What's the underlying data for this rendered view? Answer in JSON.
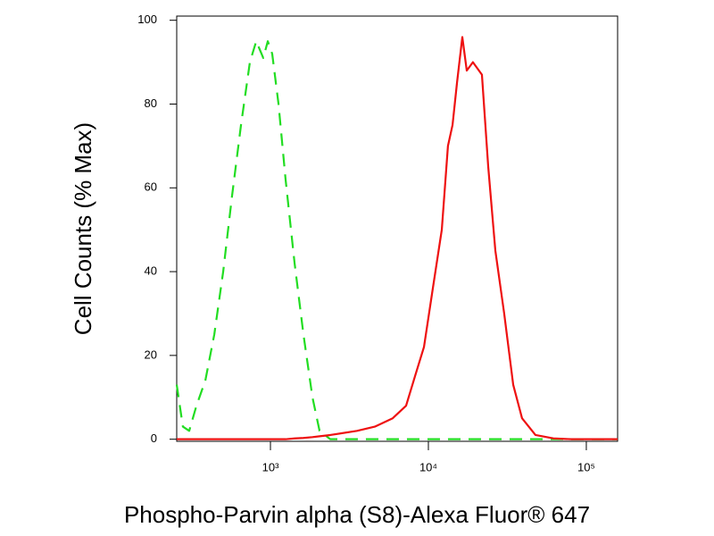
{
  "chart_data": {
    "type": "line",
    "xlabel": "Phospho-Parvin alpha (S8)-Alexa Fluor® 647",
    "ylabel": "Cell Counts (% Max)",
    "xscale": "log",
    "xlim": [
      255,
      157800
    ],
    "ylim": [
      -0.5,
      101
    ],
    "xticks": [
      {
        "value": 1000,
        "label": "10³"
      },
      {
        "value": 10000,
        "label": "10⁴"
      },
      {
        "value": 100000,
        "label": "10⁵"
      }
    ],
    "yticks": [
      0,
      20,
      40,
      60,
      80,
      100
    ],
    "x": [
      255,
      279,
      306,
      340,
      387,
      441,
      502,
      571,
      651,
      741,
      813,
      901,
      962,
      1026,
      1125,
      1247,
      1422,
      1618,
      1845,
      2046,
      2391,
      3532,
      4581,
      5943,
      7223,
      8222,
      9376,
      10670,
      12160,
      13300,
      14220,
      15170,
      16400,
      17500,
      19140,
      21830,
      23930,
      26550,
      30200,
      34440,
      39180,
      47640,
      61800,
      80170,
      157800
    ],
    "series": [
      {
        "color": "#22dd22",
        "line_style": "dashed",
        "values": [
          13,
          3,
          2,
          8,
          14,
          25,
          40,
          58,
          75,
          90,
          95,
          91,
          95,
          92,
          80,
          62,
          42,
          25,
          10,
          2,
          0,
          0,
          0,
          0,
          0,
          0,
          0,
          0,
          0,
          0,
          0,
          0,
          0,
          0,
          0,
          0,
          0,
          0,
          0,
          0,
          0,
          0,
          0,
          0,
          0
        ]
      },
      {
        "color": "#ee1111",
        "line_style": "solid",
        "values": [
          0,
          0,
          0,
          0,
          0,
          0,
          0,
          0,
          0,
          0,
          0,
          0,
          0,
          0,
          0,
          0,
          0.2,
          0.3,
          0.5,
          0.7,
          1,
          2,
          3,
          5,
          8,
          15,
          22,
          36,
          50,
          70,
          75,
          85,
          96,
          88,
          90,
          87,
          65,
          45,
          30,
          13,
          5,
          1,
          0.2,
          0,
          0
        ]
      }
    ]
  }
}
